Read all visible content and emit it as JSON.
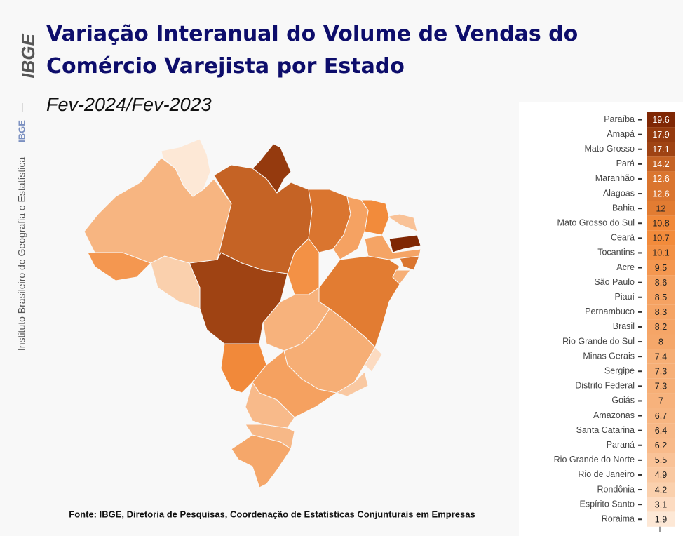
{
  "header": {
    "logo": "IBGE",
    "institute": "Instituto Brasileiro de Geografia e Estatística",
    "institute_short": "IBGE"
  },
  "source": "Fonte: IBGE, Diretoria de Pesquisas, Coordenação de Estatísticas Conjunturais em Empresas",
  "chart_data": {
    "type": "heatmap",
    "title": "Variação Interanual do Volume de Vendas do Comércio Varejista por Estado",
    "subtitle": "Fev-2024/Fev-2023",
    "categories": [
      "Paraíba",
      "Amapá",
      "Mato Grosso",
      "Pará",
      "Maranhão",
      "Alagoas",
      "Bahia",
      "Mato Grosso do Sul",
      "Ceará",
      "Tocantins",
      "Acre",
      "São Paulo",
      "Piauí",
      "Pernambuco",
      "Brasil",
      "Rio Grande do Sul",
      "Minas Gerais",
      "Sergipe",
      "Distrito Federal",
      "Goiás",
      "Amazonas",
      "Santa Catarina",
      "Paraná",
      "Rio Grande do Norte",
      "Rio de Janeiro",
      "Rondônia",
      "Espírito Santo",
      "Roraima"
    ],
    "values": [
      19.6,
      17.9,
      17.1,
      14.2,
      12.6,
      12.6,
      12,
      10.8,
      10.7,
      10.1,
      9.5,
      8.6,
      8.5,
      8.3,
      8.2,
      8,
      7.4,
      7.3,
      7.3,
      7,
      6.7,
      6.4,
      6.2,
      5.5,
      4.9,
      4.2,
      3.1,
      1.9
    ],
    "color_scale": [
      "#fde8d6",
      "#f28a3a",
      "#7f2704"
    ]
  }
}
